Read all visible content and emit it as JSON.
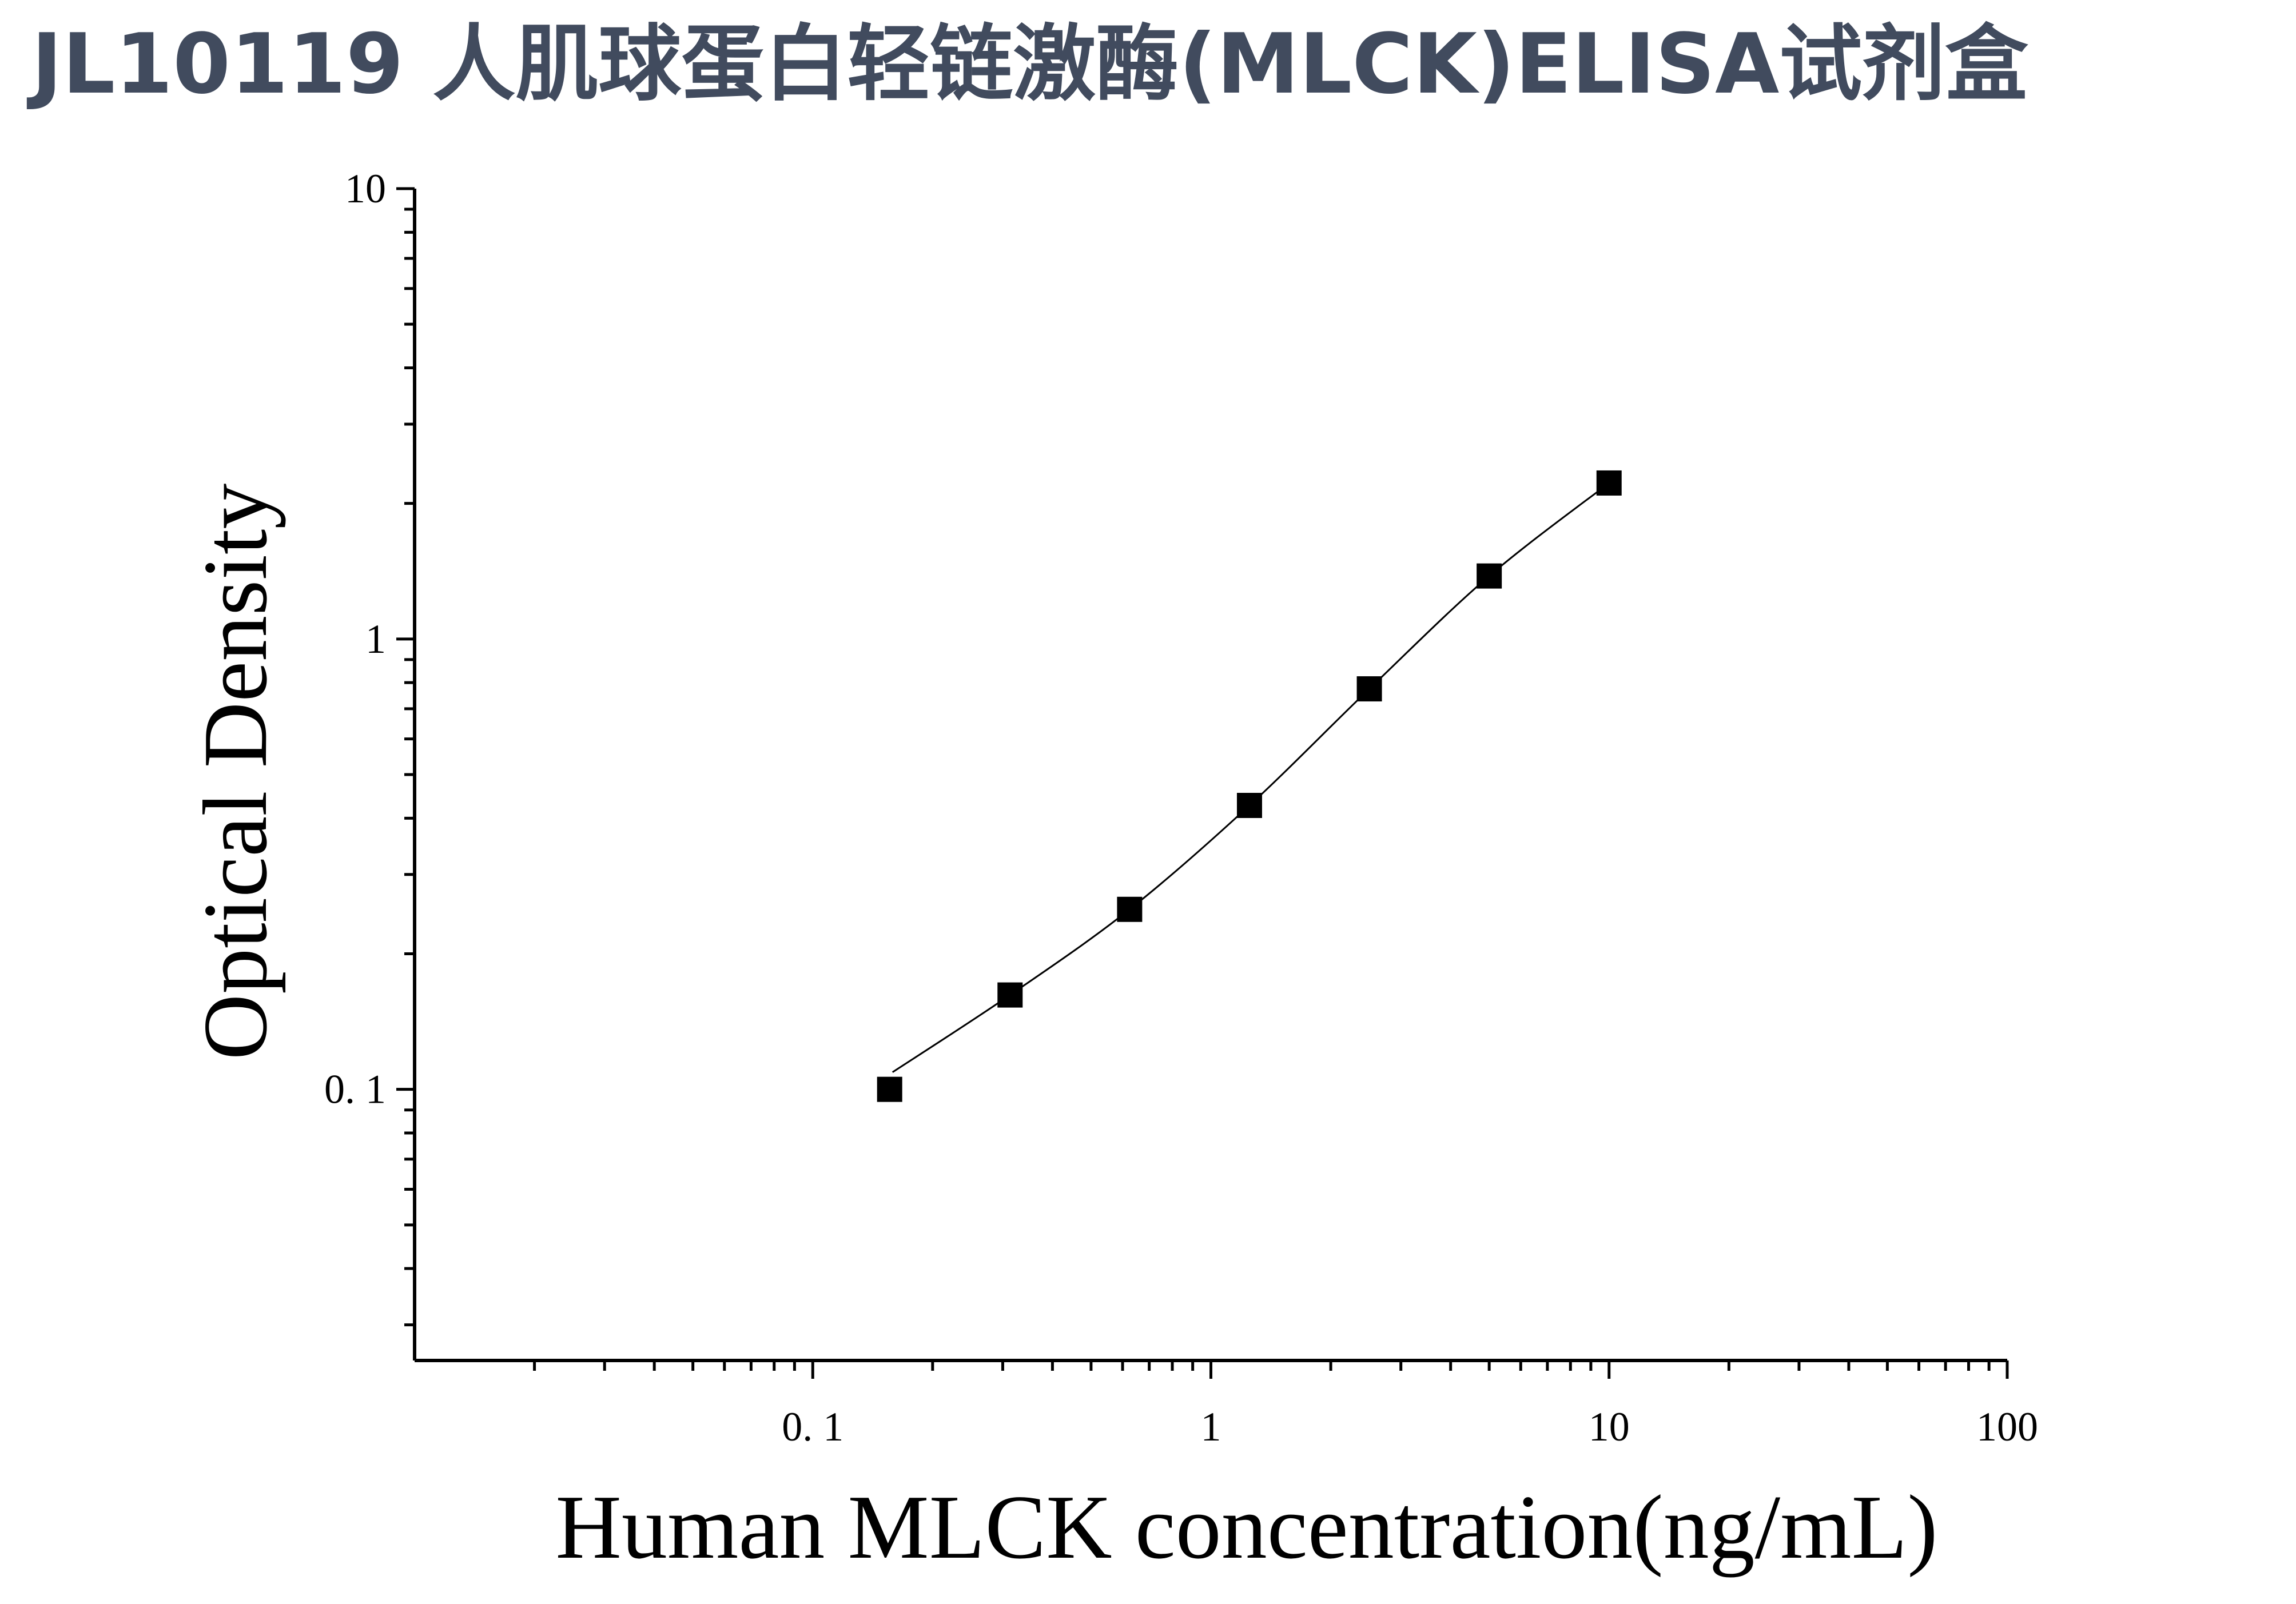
{
  "title": "JL10119 人肌球蛋白轻链激酶(MLCK)ELISA试剂盒",
  "chart_data": {
    "type": "scatter",
    "title": "JL10119 人肌球蛋白轻链激酶(MLCK)ELISA试剂盒",
    "xlabel": "Human MLCK concentration(ng/mL)",
    "ylabel": "Optical Density",
    "x_scale": "log",
    "y_scale": "log",
    "xlim": [
      0.01,
      100
    ],
    "ylim": [
      0.025,
      10
    ],
    "x_tick_labels": [
      "0. 1",
      "1",
      "10",
      "100"
    ],
    "y_tick_labels": [
      "0. 1",
      "1",
      "10"
    ],
    "grid": false,
    "legend": "none",
    "marker": "square",
    "colors": {
      "points": "#000000",
      "curve": "#000000",
      "title": "#414b5e"
    },
    "series": [
      {
        "x": [
          0.156,
          0.313,
          0.625,
          1.25,
          2.5,
          5,
          10
        ],
        "y": [
          0.1,
          0.162,
          0.251,
          0.427,
          0.775,
          1.38,
          2.22
        ]
      }
    ]
  }
}
